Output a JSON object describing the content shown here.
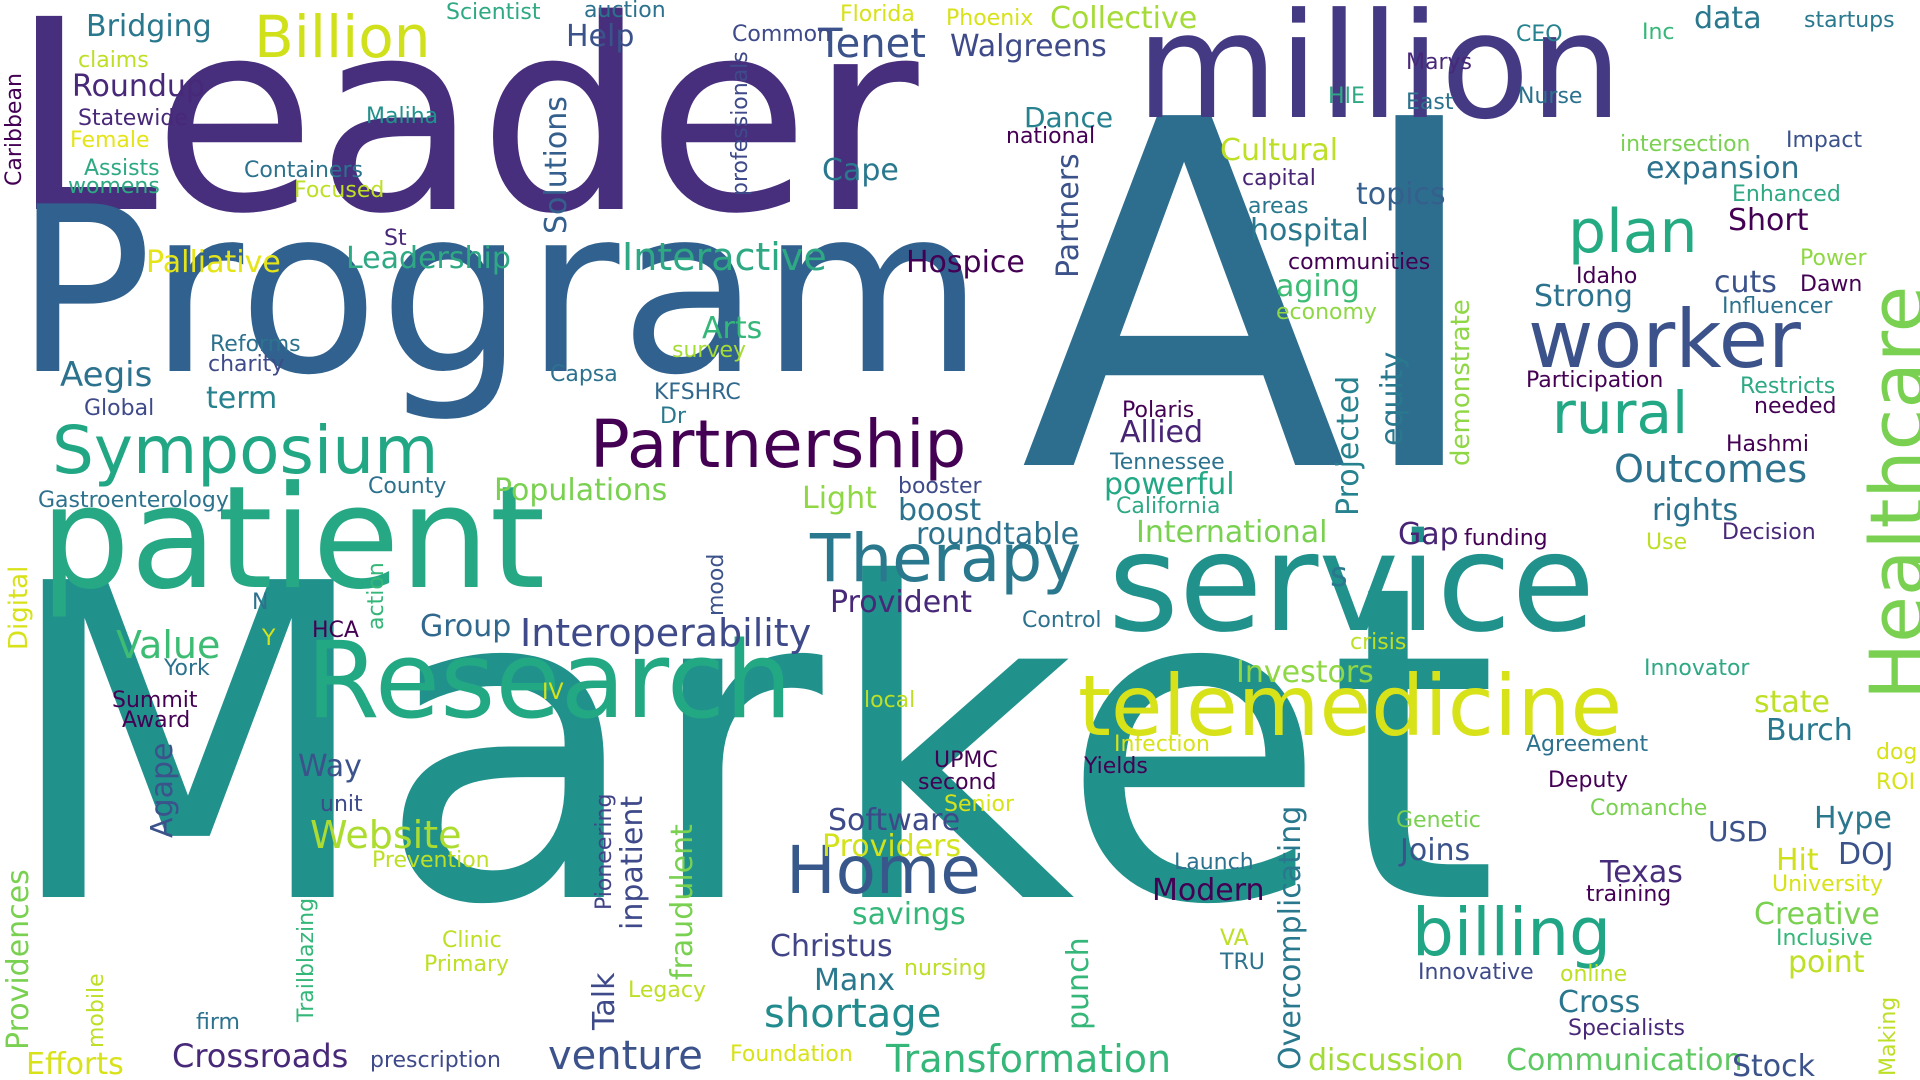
{
  "words": [
    {
      "text": "Market",
      "color": "#21918c"
    },
    {
      "text": "AI",
      "color": "#2d6e8e"
    },
    {
      "text": "Leader",
      "color": "#472f7d"
    },
    {
      "text": "Program",
      "color": "#31618e"
    },
    {
      "text": "million",
      "color": "#443a83"
    },
    {
      "text": "patient",
      "color": "#26a884"
    },
    {
      "text": "service",
      "color": "#21918c"
    },
    {
      "text": "Research",
      "color": "#23a884"
    },
    {
      "text": "telemedicine",
      "color": "#d8e219"
    },
    {
      "text": "Healthcare",
      "color": "#7ad151"
    },
    {
      "text": "worker",
      "color": "#3b528b"
    },
    {
      "text": "Partnership",
      "color": "#440154"
    },
    {
      "text": "Symposium",
      "color": "#22a785"
    },
    {
      "text": "billing",
      "color": "#21a685"
    },
    {
      "text": "Home",
      "color": "#38588c"
    },
    {
      "text": "Therapy",
      "color": "#2a788e"
    },
    {
      "text": "plan",
      "color": "#25ab82"
    },
    {
      "text": "rural",
      "color": "#22a884"
    },
    {
      "text": "Billion",
      "color": "#d0e11c"
    },
    {
      "text": "Interoperability",
      "color": "#3e4a89"
    },
    {
      "text": "Transformation",
      "color": "#35b779"
    },
    {
      "text": "shortage",
      "color": "#228b8d"
    },
    {
      "text": "venture",
      "color": "#3b528b"
    },
    {
      "text": "Outcomes",
      "color": "#2c728e"
    },
    {
      "text": "Interactive",
      "color": "#2ea984"
    },
    {
      "text": "Website",
      "color": "#addc30"
    },
    {
      "text": "Crossroads",
      "color": "#482878"
    },
    {
      "text": "Communication",
      "color": "#5ec962"
    },
    {
      "text": "Stock",
      "color": "#3b528b"
    },
    {
      "text": "discussion",
      "color": "#a2da37"
    },
    {
      "text": "Texas",
      "color": "#472d7b"
    },
    {
      "text": "Cross",
      "color": "#2a768e"
    },
    {
      "text": "Joins",
      "color": "#3b528b"
    },
    {
      "text": "Creative",
      "color": "#7ad151"
    },
    {
      "text": "Hype",
      "color": "#2a788e"
    },
    {
      "text": "Christus",
      "color": "#414487"
    },
    {
      "text": "Modern",
      "color": "#440154"
    },
    {
      "text": "savings",
      "color": "#35b779"
    },
    {
      "text": "Manx",
      "color": "#2a788e"
    },
    {
      "text": "Investors",
      "color": "#8fd744"
    },
    {
      "text": "Value",
      "color": "#3dbc74"
    },
    {
      "text": "Group",
      "color": "#31688e"
    },
    {
      "text": "Provident",
      "color": "#482878"
    },
    {
      "text": "Software",
      "color": "#3e4989"
    },
    {
      "text": "Providers",
      "color": "#d2e21b"
    },
    {
      "text": "International",
      "color": "#7ad151"
    },
    {
      "text": "roundtable",
      "color": "#2c728e"
    },
    {
      "text": "Populations",
      "color": "#7ad151"
    },
    {
      "text": "Light",
      "color": "#8fd744"
    },
    {
      "text": "boost",
      "color": "#2c728e"
    },
    {
      "text": "Allied",
      "color": "#482475"
    },
    {
      "text": "powerful",
      "color": "#22a884"
    },
    {
      "text": "Arts",
      "color": "#35b779"
    },
    {
      "text": "Aegis",
      "color": "#2c728e"
    },
    {
      "text": "term",
      "color": "#26828e"
    },
    {
      "text": "Leadership",
      "color": "#2ea984"
    },
    {
      "text": "Palliative",
      "color": "#e5e419"
    },
    {
      "text": "Hospice",
      "color": "#440154"
    },
    {
      "text": "Tenet",
      "color": "#3b528b"
    },
    {
      "text": "Walgreens",
      "color": "#3e4a89"
    },
    {
      "text": "Collective",
      "color": "#a5db36"
    },
    {
      "text": "Bridging",
      "color": "#2a788e"
    },
    {
      "text": "Roundup",
      "color": "#482878"
    },
    {
      "text": "Cape",
      "color": "#2a788e"
    },
    {
      "text": "Dance",
      "color": "#26828e"
    },
    {
      "text": "Cultural",
      "color": "#bddf26"
    },
    {
      "text": "hospital",
      "color": "#2a788e"
    },
    {
      "text": "topics",
      "color": "#355f8d"
    },
    {
      "text": "expansion",
      "color": "#2c728e"
    },
    {
      "text": "data",
      "color": "#2a788e"
    },
    {
      "text": "Short",
      "color": "#440154"
    },
    {
      "text": "cuts",
      "color": "#3b528b"
    },
    {
      "text": "Strong",
      "color": "#2c728e"
    },
    {
      "text": "aging",
      "color": "#3dbc74"
    },
    {
      "text": "rights",
      "color": "#2c728e"
    },
    {
      "text": "Gap",
      "color": "#482475"
    },
    {
      "text": "Burch",
      "color": "#2a788e"
    },
    {
      "text": "state",
      "color": "#bddf26"
    },
    {
      "text": "point",
      "color": "#bddf26"
    },
    {
      "text": "Hit",
      "color": "#d0e11c"
    },
    {
      "text": "DOJ",
      "color": "#3b528b"
    },
    {
      "text": "USD",
      "color": "#3b528b"
    },
    {
      "text": "Talk",
      "color": "#3e4a89"
    },
    {
      "text": "punch",
      "color": "#35b779"
    },
    {
      "text": "Efforts",
      "color": "#d8e219"
    },
    {
      "text": "Solutions",
      "color": "#355f8d"
    },
    {
      "text": "Partners",
      "color": "#3b528b"
    },
    {
      "text": "equity",
      "color": "#2a788e"
    },
    {
      "text": "Projected",
      "color": "#26828e"
    },
    {
      "text": "demonstrate",
      "color": "#8fd744"
    },
    {
      "text": "Overcomplicating",
      "color": "#2a788e"
    },
    {
      "text": "fraudulent",
      "color": "#7ad151"
    },
    {
      "text": "inpatient",
      "color": "#3e4a89"
    },
    {
      "text": "Providences",
      "color": "#7ad151"
    },
    {
      "text": "Agape",
      "color": "#3b528b"
    },
    {
      "text": "Digital",
      "color": "#d8e219"
    },
    {
      "text": "Pioneering",
      "color": "#414487"
    },
    {
      "text": "professionals",
      "color": "#3e4a89"
    },
    {
      "text": "Trailblazing",
      "color": "#35b779"
    },
    {
      "text": "mobile",
      "color": "#bddf26"
    },
    {
      "text": "Making",
      "color": "#bddf26"
    },
    {
      "text": "Caribbean",
      "color": "#440154"
    },
    {
      "text": "action",
      "color": "#35b779"
    },
    {
      "text": "mood",
      "color": "#3b528b"
    },
    {
      "text": "Gastroenterology",
      "color": "#2c728e"
    },
    {
      "text": "County",
      "color": "#2c728e"
    },
    {
      "text": "Capsa",
      "color": "#2c728e"
    },
    {
      "text": "survey",
      "color": "#a5db36"
    },
    {
      "text": "KFSHRC",
      "color": "#31688e"
    },
    {
      "text": "Dr",
      "color": "#2a788e"
    },
    {
      "text": "Reforms",
      "color": "#2c728e"
    },
    {
      "text": "charity",
      "color": "#3e4a89"
    },
    {
      "text": "Global",
      "color": "#3e4a89"
    },
    {
      "text": "Containers",
      "color": "#2c728e"
    },
    {
      "text": "Focused",
      "color": "#bddf26"
    },
    {
      "text": "Assists",
      "color": "#2ea984"
    },
    {
      "text": "womens",
      "color": "#2ea984"
    },
    {
      "text": "Female",
      "color": "#e5e419"
    },
    {
      "text": "Statewide",
      "color": "#482878"
    },
    {
      "text": "Maliha",
      "color": "#21918c"
    },
    {
      "text": "claims",
      "color": "#bddf26"
    },
    {
      "text": "Scientist",
      "color": "#2ea984"
    },
    {
      "text": "auction",
      "color": "#2c728e"
    },
    {
      "text": "Common",
      "color": "#3e4a89"
    },
    {
      "text": "Help",
      "color": "#3b528b"
    },
    {
      "text": "Florida",
      "color": "#d8e219"
    },
    {
      "text": "Phoenix",
      "color": "#d8e219"
    },
    {
      "text": "St",
      "color": "#482878"
    },
    {
      "text": "national",
      "color": "#440154"
    },
    {
      "text": "capital",
      "color": "#482475"
    },
    {
      "text": "areas",
      "color": "#2a788e"
    },
    {
      "text": "communities",
      "color": "#440154"
    },
    {
      "text": "economy",
      "color": "#8fd744"
    },
    {
      "text": "Idaho",
      "color": "#440154"
    },
    {
      "text": "Dawn",
      "color": "#440154"
    },
    {
      "text": "Influencer",
      "color": "#2c728e"
    },
    {
      "text": "Power",
      "color": "#8fd744"
    },
    {
      "text": "Enhanced",
      "color": "#2ea984"
    },
    {
      "text": "Impact",
      "color": "#3b528b"
    },
    {
      "text": "intersection",
      "color": "#7ad151"
    },
    {
      "text": "Participation",
      "color": "#440154"
    },
    {
      "text": "Restricts",
      "color": "#2ea984"
    },
    {
      "text": "needed",
      "color": "#440154"
    },
    {
      "text": "Hashmi",
      "color": "#440154"
    },
    {
      "text": "Polaris",
      "color": "#440154"
    },
    {
      "text": "Tennessee",
      "color": "#2c728e"
    },
    {
      "text": "California",
      "color": "#2ea984"
    },
    {
      "text": "booster",
      "color": "#3e4a89"
    },
    {
      "text": "funding",
      "color": "#440154"
    },
    {
      "text": "Use",
      "color": "#bddf26"
    },
    {
      "text": "Decision",
      "color": "#482878"
    },
    {
      "text": "Marys",
      "color": "#482878"
    },
    {
      "text": "CEO",
      "color": "#26828e"
    },
    {
      "text": "Inc",
      "color": "#35b779"
    },
    {
      "text": "startups",
      "color": "#2a788e"
    },
    {
      "text": "HIE",
      "color": "#2ea984"
    },
    {
      "text": "East",
      "color": "#2c728e"
    },
    {
      "text": "Nurse",
      "color": "#2c728e"
    },
    {
      "text": "s",
      "color": "#2a788e"
    },
    {
      "text": "Control",
      "color": "#2c728e"
    },
    {
      "text": "crisis",
      "color": "#bddf26"
    },
    {
      "text": "Innovator",
      "color": "#2ea984"
    },
    {
      "text": "Agreement",
      "color": "#2c728e"
    },
    {
      "text": "Deputy",
      "color": "#440154"
    },
    {
      "text": "Comanche",
      "color": "#7ad151"
    },
    {
      "text": "Genetic",
      "color": "#7ad151"
    },
    {
      "text": "University",
      "color": "#d8e219"
    },
    {
      "text": "training",
      "color": "#440154"
    },
    {
      "text": "Inclusive",
      "color": "#35b779"
    },
    {
      "text": "dog",
      "color": "#d8e219"
    },
    {
      "text": "ROI",
      "color": "#d8e219"
    },
    {
      "text": "Launch",
      "color": "#2c728e"
    },
    {
      "text": "VA",
      "color": "#bddf26"
    },
    {
      "text": "TRU",
      "color": "#2c728e"
    },
    {
      "text": "Innovative",
      "color": "#3e4a89"
    },
    {
      "text": "online",
      "color": "#bddf26"
    },
    {
      "text": "Specialists",
      "color": "#482878"
    },
    {
      "text": "Infection",
      "color": "#d8e219"
    },
    {
      "text": "Yields",
      "color": "#440154"
    },
    {
      "text": "local",
      "color": "#bddf26"
    },
    {
      "text": "IV",
      "color": "#d8e219"
    },
    {
      "text": "UPMC",
      "color": "#440154"
    },
    {
      "text": "second",
      "color": "#440154"
    },
    {
      "text": "Senior",
      "color": "#d8e219"
    },
    {
      "text": "Prevention",
      "color": "#bddf26"
    },
    {
      "text": "Clinic",
      "color": "#bddf26"
    },
    {
      "text": "Primary",
      "color": "#bddf26"
    },
    {
      "text": "nursing",
      "color": "#bddf26"
    },
    {
      "text": "Legacy",
      "color": "#bddf26"
    },
    {
      "text": "Foundation",
      "color": "#d8e219"
    },
    {
      "text": "prescription",
      "color": "#3e4a89"
    },
    {
      "text": "firm",
      "color": "#2c728e"
    },
    {
      "text": "unit",
      "color": "#3e4a89"
    },
    {
      "text": "Way",
      "color": "#3b528b"
    },
    {
      "text": "HCA",
      "color": "#440154"
    },
    {
      "text": "N",
      "color": "#2c728e"
    },
    {
      "text": "Y",
      "color": "#d8e219"
    },
    {
      "text": "York",
      "color": "#2c728e"
    },
    {
      "text": "Summit",
      "color": "#440154"
    },
    {
      "text": "Award",
      "color": "#440154"
    }
  ]
}
